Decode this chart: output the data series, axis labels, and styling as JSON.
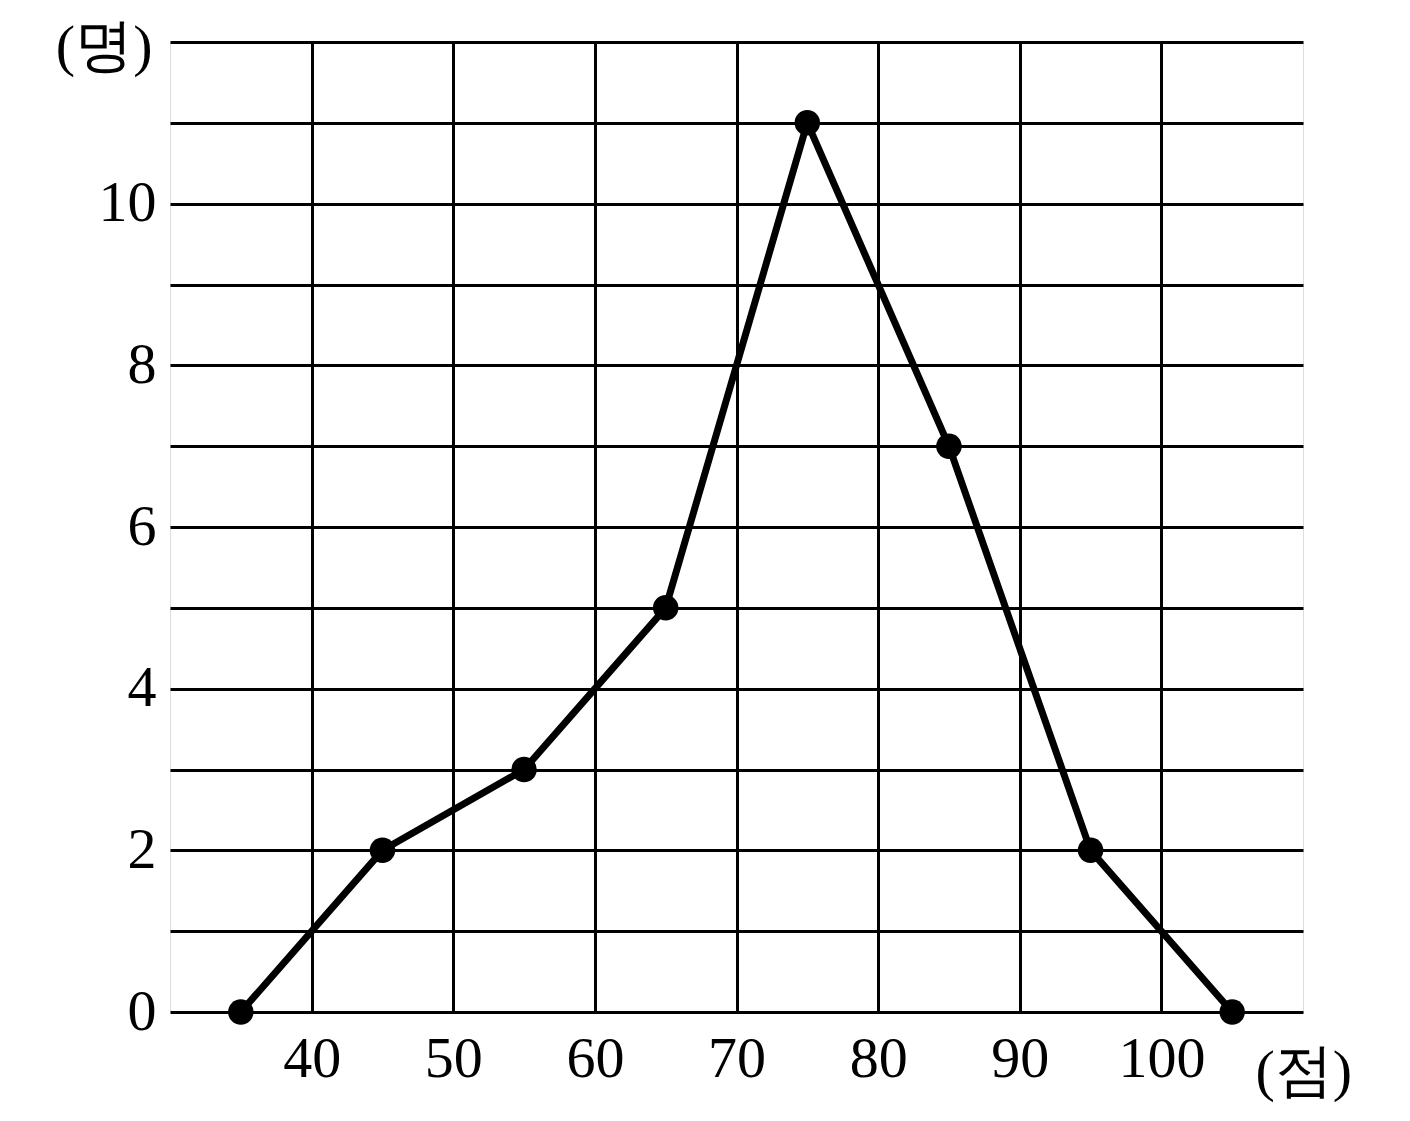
{
  "chart_data": {
    "type": "line",
    "xlabel": "(점)",
    "ylabel": "(명)",
    "x": [
      35,
      45,
      55,
      65,
      75,
      85,
      95,
      105
    ],
    "values": [
      0,
      2,
      3,
      5,
      11,
      7,
      2,
      0
    ],
    "color": "#000000",
    "marker": "circle",
    "line_style": "solid",
    "grid": true,
    "xlim": [
      30,
      110
    ],
    "xticks": [
      40,
      50,
      60,
      70,
      80,
      90,
      100
    ],
    "ylim": [
      0,
      12
    ],
    "yticks": [
      0,
      {
        "value": 1,
        "label": null
      },
      2,
      {
        "value": 3,
        "label": null
      },
      4,
      {
        "value": 5,
        "label": null
      },
      6,
      {
        "value": 7,
        "label": null
      },
      8,
      {
        "value": 9,
        "label": null
      },
      10,
      {
        "value": 11,
        "label": null
      },
      {
        "value": 12,
        "label": null
      }
    ]
  }
}
